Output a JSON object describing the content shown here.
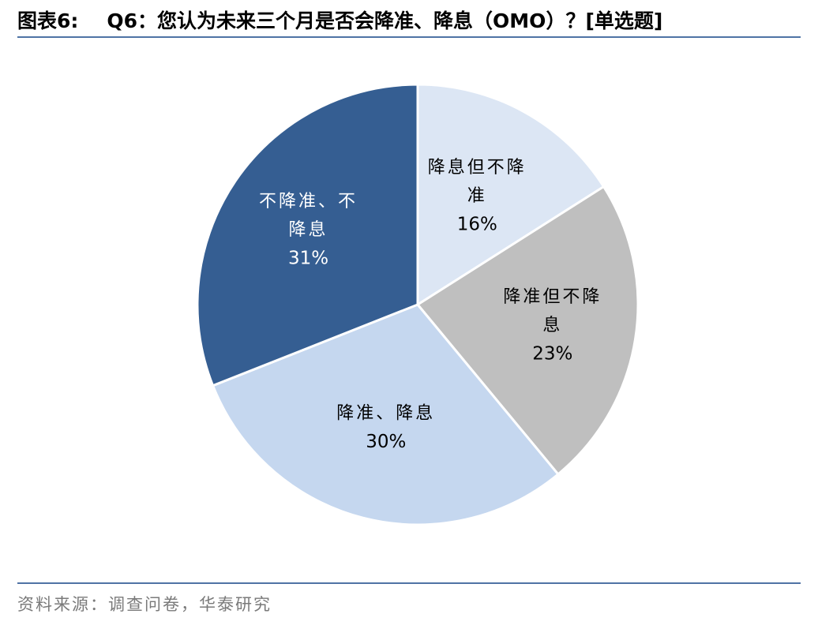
{
  "figure": {
    "label": "图表6:",
    "title": "Q6：您认为未来三个月是否会降准、降息（OMO）？[单选题]"
  },
  "source": "资料来源：调查问卷，华泰研究",
  "chart_data": {
    "type": "pie",
    "title": "Q6：您认为未来三个月是否会降准、降息（OMO）？[单选题]",
    "start_angle": "12 o'clock",
    "direction": "clockwise",
    "slices": [
      {
        "label_line1": "降息但不降",
        "label_line2": "准",
        "value": 16,
        "value_label": "16%",
        "color": "#dce6f4",
        "text_color": "#000000"
      },
      {
        "label_line1": "降准但不降",
        "label_line2": "息",
        "value": 23,
        "value_label": "23%",
        "color": "#bfbfbf",
        "text_color": "#000000"
      },
      {
        "label_line1": "降准、降息",
        "label_line2": "",
        "value": 30,
        "value_label": "30%",
        "color": "#c5d7ef",
        "text_color": "#000000"
      },
      {
        "label_line1": "不降准、不",
        "label_line2": "降息",
        "value": 31,
        "value_label": "31%",
        "color": "#355e92",
        "text_color": "#ffffff"
      }
    ]
  }
}
